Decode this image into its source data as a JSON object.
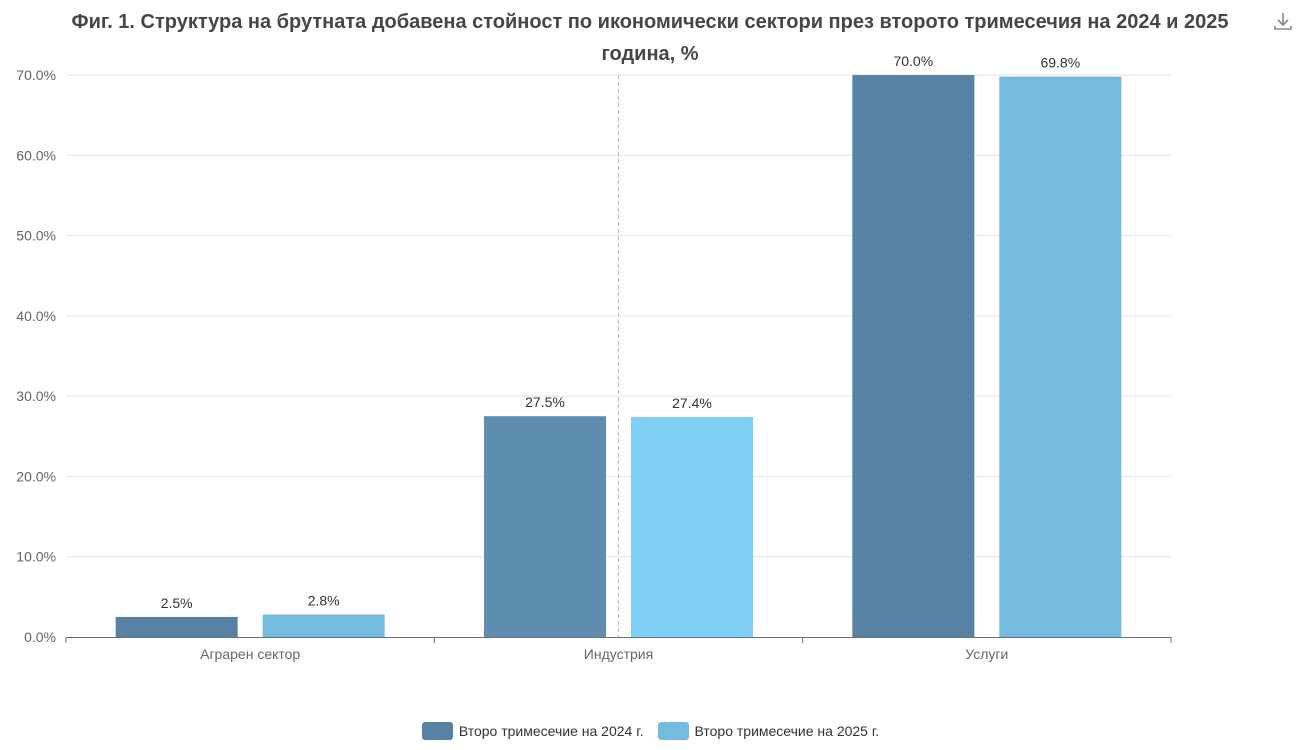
{
  "title": "Фиг. 1. Структура на брутната добавена стойност по икономически сектори през второто тримесечия на 2024 и 2025 година, %",
  "toolbar": {
    "download_icon": "download-icon"
  },
  "chart_data": {
    "type": "bar",
    "title": "Фиг. 1. Структура на брутната добавена стойност по икономически сектори през второто тримесечия на 2024 и 2025 година, %",
    "categories": [
      "Аграрен сектор",
      "Индустрия",
      "Услуги"
    ],
    "series": [
      {
        "name": "Второ тримесечие на 2024 г.",
        "values": [
          2.5,
          27.5,
          70.0
        ],
        "color": "#5882a3"
      },
      {
        "name": "Второ тримесечие на 2025 г.",
        "values": [
          2.8,
          27.4,
          69.8
        ],
        "color": "#74bbdf"
      }
    ],
    "highlight": {
      "category_index": 1,
      "colors": [
        "#5e8daf",
        "#80d0f5"
      ]
    },
    "data_labels": [
      [
        "2.5%",
        "27.5%",
        "70.0%"
      ],
      [
        "2.8%",
        "27.4%",
        "69.8%"
      ]
    ],
    "yticks": [
      "0.0%",
      "10.0%",
      "20.0%",
      "30.0%",
      "40.0%",
      "50.0%",
      "60.0%",
      "70.0%"
    ],
    "ylim": [
      0,
      70
    ],
    "xlabel": "",
    "ylabel": "",
    "grid": true,
    "legend_position": "bottom"
  }
}
